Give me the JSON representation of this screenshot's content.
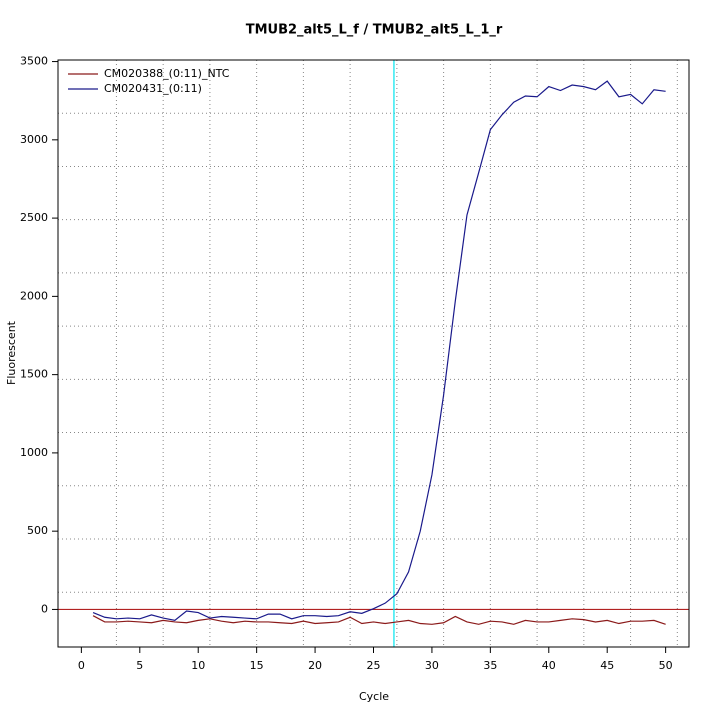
{
  "chart_data": {
    "type": "line",
    "title": "TMUB2_alt5_L_f / TMUB2_alt5_L_1_r",
    "x_label": "Cycle",
    "y_label": "Fluorescent",
    "x": [
      1,
      2,
      3,
      4,
      5,
      6,
      7,
      8,
      9,
      10,
      11,
      12,
      13,
      14,
      15,
      16,
      17,
      18,
      19,
      20,
      21,
      22,
      23,
      24,
      25,
      26,
      27,
      28,
      29,
      30,
      31,
      32,
      33,
      34,
      35,
      36,
      37,
      38,
      39,
      40,
      41,
      42,
      43,
      44,
      45,
      46,
      47,
      48,
      49,
      50
    ],
    "series": [
      {
        "name": "CM020388_(0:11)_NTC",
        "color": "#8b1a1a",
        "values": [
          -40,
          -80,
          -80,
          -75,
          -80,
          -85,
          -70,
          -80,
          -85,
          -70,
          -60,
          -75,
          -85,
          -75,
          -80,
          -80,
          -85,
          -90,
          -75,
          -90,
          -85,
          -80,
          -50,
          -90,
          -80,
          -90,
          -80,
          -70,
          -90,
          -95,
          -85,
          -45,
          -80,
          -95,
          -75,
          -80,
          -95,
          -70,
          -80,
          -80,
          -70,
          -60,
          -65,
          -80,
          -70,
          -90,
          -75,
          -75,
          -70,
          -95
        ]
      },
      {
        "name": "CM020431_(0:11)",
        "color": "#1a1a8b",
        "values": [
          -20,
          -50,
          -60,
          -55,
          -60,
          -35,
          -55,
          -70,
          -10,
          -20,
          -55,
          -45,
          -50,
          -55,
          -60,
          -30,
          -30,
          -60,
          -40,
          -40,
          -45,
          -40,
          -15,
          -25,
          5,
          40,
          100,
          240,
          500,
          860,
          1370,
          1970,
          2520,
          2790,
          3065,
          3160,
          3240,
          3280,
          3275,
          3340,
          3315,
          3350,
          3340,
          3320,
          3375,
          3275,
          3290,
          3230,
          3320,
          3310
        ]
      }
    ],
    "xlim": [
      -2,
      52
    ],
    "ylim": [
      -240,
      3510
    ],
    "xticks": [
      0,
      5,
      10,
      15,
      20,
      25,
      30,
      35,
      40,
      45,
      50
    ],
    "yticks": [
      0,
      500,
      1000,
      1500,
      2000,
      2500,
      3000,
      3500
    ],
    "xgrid": [
      3,
      7,
      11,
      15,
      19,
      23,
      27,
      31,
      35,
      39,
      43,
      47,
      51
    ],
    "ygrid": [
      110,
      450,
      790,
      1130,
      1470,
      1810,
      2150,
      2490,
      2830,
      3170
    ],
    "threshold_cycle": 26.75,
    "threshold_color": "#00e5ee",
    "baseline": 0,
    "baseline_color": "#b22222",
    "legend": "top-left"
  }
}
